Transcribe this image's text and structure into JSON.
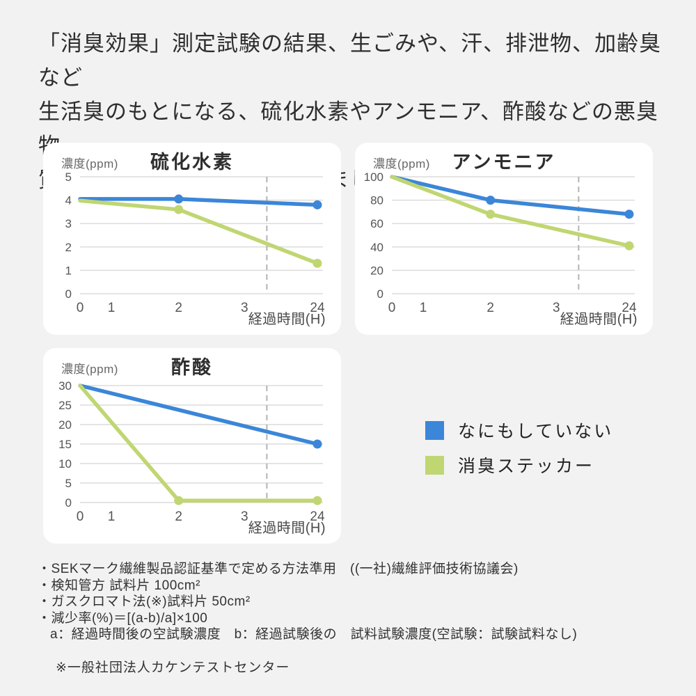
{
  "page": {
    "background_color": "#f2f2f2",
    "card_background_color": "#ffffff"
  },
  "header": {
    "lines": [
      "「消臭効果」測定試験の結果、生ごみや、汗、排泄物、加齢臭など",
      "生活臭のもとになる、硫化水素やアンモニア、酢酸などの悪臭物",
      "質に対して消臭効果を発揮しました。"
    ]
  },
  "legend": {
    "items": [
      {
        "label": "なにもしていない",
        "color": "#3b86d8"
      },
      {
        "label": "消臭ステッカー",
        "color": "#c0d672"
      }
    ]
  },
  "footnotes": {
    "lines": [
      "・SEKマーク繊維製品認証基準で定める方法準用　((一社)繊維評価技術協議会)",
      "・検知管方 試料片 100cm²",
      "・ガスクロマト法(※)試料片 50cm²",
      "・減少率(%)＝[(a-b)/a]×100",
      "a：経過時間後の空試験濃度　b：経過試験後の　試料試験濃度(空試験：試験試料なし)"
    ],
    "note": "※一般社団法人カケンテストセンター"
  },
  "chart_data": [
    {
      "type": "line",
      "title": "硫化水素",
      "ylabel": "濃度(ppm)",
      "xlabel": "経過時間(H)",
      "x_ticks": [
        "0",
        "1",
        "2",
        "3",
        "24"
      ],
      "y_ticks": [
        0,
        1,
        2,
        3,
        4,
        5
      ],
      "ylim": [
        0,
        5
      ],
      "grid": true,
      "dashed_vertical_line": true,
      "series": [
        {
          "name": "なにもしていない",
          "color": "#3b86d8",
          "points": [
            [
              0,
              4.05
            ],
            [
              2,
              4.05
            ],
            [
              24,
              3.8
            ]
          ],
          "marker_hours": [
            2,
            24
          ]
        },
        {
          "name": "消臭ステッカー",
          "color": "#c0d672",
          "points": [
            [
              0,
              3.98
            ],
            [
              2,
              3.6
            ],
            [
              24,
              1.3
            ]
          ],
          "marker_hours": [
            2,
            24
          ]
        }
      ]
    },
    {
      "type": "line",
      "title": "アンモニア",
      "ylabel": "濃度(ppm)",
      "xlabel": "経過時間(H)",
      "x_ticks": [
        "0",
        "1",
        "2",
        "3",
        "24"
      ],
      "y_ticks": [
        0,
        20,
        40,
        60,
        80,
        100
      ],
      "ylim": [
        0,
        100
      ],
      "grid": true,
      "dashed_vertical_line": true,
      "series": [
        {
          "name": "なにもしていない",
          "color": "#3b86d8",
          "points": [
            [
              0,
              100
            ],
            [
              2,
              80
            ],
            [
              24,
              68
            ]
          ],
          "marker_hours": [
            2,
            24
          ]
        },
        {
          "name": "消臭ステッカー",
          "color": "#c0d672",
          "points": [
            [
              0,
              100
            ],
            [
              2,
              68
            ],
            [
              24,
              41
            ]
          ],
          "marker_hours": [
            2,
            24
          ]
        }
      ]
    },
    {
      "type": "line",
      "title": "酢酸",
      "ylabel": "濃度(ppm)",
      "xlabel": "経過時間(H)",
      "x_ticks": [
        "0",
        "1",
        "2",
        "3",
        "24"
      ],
      "y_ticks": [
        0,
        5,
        10,
        15,
        20,
        25,
        30
      ],
      "ylim": [
        0,
        30
      ],
      "grid": true,
      "dashed_vertical_line": true,
      "series": [
        {
          "name": "なにもしていない",
          "color": "#3b86d8",
          "points": [
            [
              0,
              30
            ],
            [
              24,
              15
            ]
          ],
          "marker_hours": [
            24
          ]
        },
        {
          "name": "消臭ステッカー",
          "color": "#c0d672",
          "points": [
            [
              0,
              30
            ],
            [
              2,
              0.5
            ],
            [
              24,
              0.5
            ]
          ],
          "marker_hours": [
            2,
            24
          ]
        }
      ]
    }
  ]
}
